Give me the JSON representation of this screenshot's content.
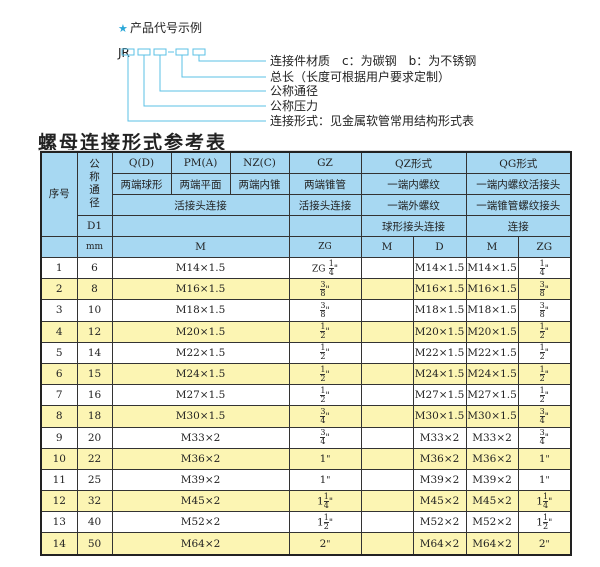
{
  "diagram": {
    "star_icon": "★",
    "title": "产品代号示例",
    "code": "JR",
    "labels": [
      "连接件材质　c：为碳钢　b：为不锈钢",
      "总长（长度可根据用户要求定制）",
      "公称通径",
      "公称压力",
      "连接形式：见金属软管常用结构形式表"
    ],
    "accent_color": "#5bc0e6"
  },
  "heading": "螺母连接形式参考表",
  "table": {
    "header": {
      "seq": "序号",
      "dn": "公称通径",
      "q": "Q(D)",
      "pm": "PM(A)",
      "nz": "NZ(C)",
      "gz": "GZ",
      "qz": "QZ形式",
      "qg": "QG形式",
      "q2": "两端球形",
      "pm2": "两端平面",
      "nz2": "两端内锥",
      "gz2": "两端锥管",
      "qz2": "一端内螺纹",
      "qg2": "一端内螺纹活接头",
      "live": "活接头连接",
      "gz3": "活接头连接",
      "qz3": "一端外螺纹",
      "qg3": "一端锥管螺纹接头",
      "d1": "D1",
      "qz4": "球形接头连接",
      "qg4": "连接",
      "mm": "mm",
      "m": "M",
      "zg": "ZG",
      "qz_m": "M",
      "qz_d": "D",
      "qg_m": "M",
      "qg_zg": "ZG"
    },
    "rows": [
      {
        "no": "1",
        "dn": "6",
        "m": "M14×1.5",
        "zg_pre": "ZG",
        "zg_whole": "",
        "zg_num": "1",
        "zg_den": "4",
        "zg_int": "",
        "d": "M14×1.5",
        "qm": "M14×1.5"
      },
      {
        "no": "2",
        "dn": "8",
        "m": "M16×1.5",
        "zg_pre": "",
        "zg_whole": "",
        "zg_num": "3",
        "zg_den": "8",
        "d": "M16×1.5",
        "qm": "M16×1.5"
      },
      {
        "no": "3",
        "dn": "10",
        "m": "M18×1.5",
        "zg_pre": "",
        "zg_whole": "",
        "zg_num": "3",
        "zg_den": "8",
        "d": "M18×1.5",
        "qm": "M18×1.5"
      },
      {
        "no": "4",
        "dn": "12",
        "m": "M20×1.5",
        "zg_pre": "",
        "zg_whole": "",
        "zg_num": "1",
        "zg_den": "2",
        "d": "M20×1.5",
        "qm": "M20×1.5"
      },
      {
        "no": "5",
        "dn": "14",
        "m": "M22×1.5",
        "zg_pre": "",
        "zg_whole": "",
        "zg_num": "1",
        "zg_den": "2",
        "d": "M22×1.5",
        "qm": "M22×1.5"
      },
      {
        "no": "6",
        "dn": "15",
        "m": "M24×1.5",
        "zg_pre": "",
        "zg_whole": "",
        "zg_num": "1",
        "zg_den": "2",
        "d": "M24×1.5",
        "qm": "M24×1.5"
      },
      {
        "no": "7",
        "dn": "16",
        "m": "M27×1.5",
        "zg_pre": "",
        "zg_whole": "",
        "zg_num": "1",
        "zg_den": "2",
        "d": "M27×1.5",
        "qm": "M27×1.5"
      },
      {
        "no": "8",
        "dn": "18",
        "m": "M30×1.5",
        "zg_pre": "",
        "zg_whole": "",
        "zg_num": "3",
        "zg_den": "4",
        "d": "M30×1.5",
        "qm": "M30×1.5"
      },
      {
        "no": "9",
        "dn": "20",
        "m": "M33×2",
        "zg_pre": "",
        "zg_whole": "",
        "zg_num": "3",
        "zg_den": "4",
        "d": "M33×2",
        "qm": "M33×2"
      },
      {
        "no": "10",
        "dn": "22",
        "m": "M36×2",
        "zg_pre": "",
        "zg_whole": "1",
        "zg_num": "",
        "zg_den": "",
        "d": "M36×2",
        "qm": "M36×2"
      },
      {
        "no": "11",
        "dn": "25",
        "m": "M39×2",
        "zg_pre": "",
        "zg_whole": "1",
        "zg_num": "",
        "zg_den": "",
        "d": "M39×2",
        "qm": "M39×2"
      },
      {
        "no": "12",
        "dn": "32",
        "m": "M45×2",
        "zg_pre": "",
        "zg_whole": "1",
        "zg_num": "1",
        "zg_den": "4",
        "d": "M45×2",
        "qm": "M45×2"
      },
      {
        "no": "13",
        "dn": "40",
        "m": "M52×2",
        "zg_pre": "",
        "zg_whole": "1",
        "zg_num": "1",
        "zg_den": "2",
        "d": "M52×2",
        "qm": "M52×2"
      },
      {
        "no": "14",
        "dn": "50",
        "m": "M64×2",
        "zg_pre": "",
        "zg_whole": "2",
        "zg_num": "",
        "zg_den": "",
        "d": "M64×2",
        "qm": "M64×2"
      }
    ],
    "inch_mark": "\"",
    "header_color": "#a7d8f2",
    "stripe_color": "#fcf5b3"
  }
}
